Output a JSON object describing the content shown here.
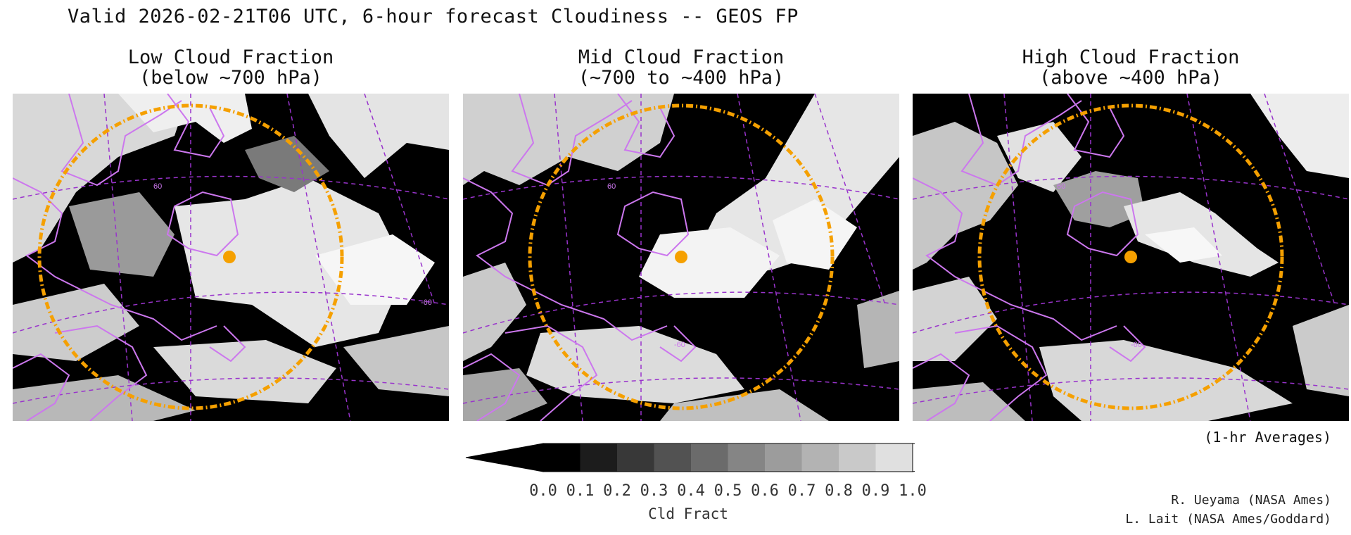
{
  "title": "Valid 2026-02-21T06 UTC, 6-hour forecast Cloudiness -- GEOS FP",
  "panels": [
    {
      "title_line1": "Low Cloud Fraction",
      "title_line2": "(below ~700 hPa)",
      "lat_label": "60",
      "lon_label": "-60"
    },
    {
      "title_line1": "Mid Cloud Fraction",
      "title_line2": "(~700 to ~400 hPa)",
      "lat_label": "60",
      "lon_label": "-60"
    },
    {
      "title_line1": "High Cloud Fraction",
      "title_line2": "(above ~400 hPa)",
      "lat_label": "60",
      "lon_label": "-60"
    }
  ],
  "averaging_note": "(1-hr Averages)",
  "colorbar": {
    "label": "Cld Fract",
    "ticks": [
      "0.0",
      "0.1",
      "0.2",
      "0.3",
      "0.4",
      "0.5",
      "0.6",
      "0.7",
      "0.8",
      "0.9",
      "1.0"
    ],
    "colors": [
      "#000000",
      "#1c1c1c",
      "#383838",
      "#525252",
      "#6b6b6b",
      "#858585",
      "#9c9c9c",
      "#b3b3b3",
      "#c9c9c9",
      "#e0e0e0"
    ],
    "under_color": "#000000",
    "over_color": "#ffffff"
  },
  "credits": [
    "R. Ueyama (NASA Ames)",
    "L. Lait (NASA Ames/Goddard)"
  ],
  "colors": {
    "coastline": "#cc77ee",
    "grid": "#9933cc",
    "range_ring": "#f5a000",
    "site_marker": "#f5a000"
  }
}
